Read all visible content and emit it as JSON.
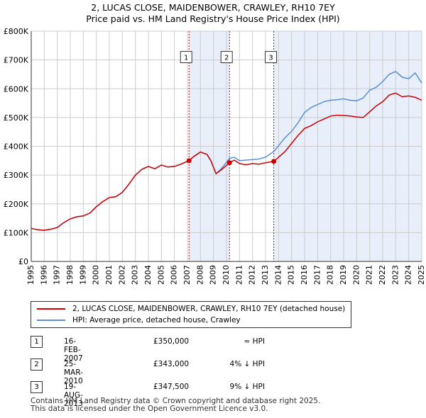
{
  "title_line1": "2, LUCAS CLOSE, MAIDENBOWER, CRAWLEY, RH10 7EY",
  "title_line2": "Price paid vs. HM Land Registry's House Price Index (HPI)",
  "chart_data": {
    "type": "line",
    "title": "2, LUCAS CLOSE, MAIDENBOWER, CRAWLEY, RH10 7EY",
    "subtitle": "Price paid vs. HM Land Registry's House Price Index (HPI)",
    "xlim": [
      1995,
      2025
    ],
    "ylim": [
      0,
      800000
    ],
    "y_ticks": [
      0,
      100000,
      200000,
      300000,
      400000,
      500000,
      600000,
      700000,
      800000
    ],
    "y_tick_labels": [
      "£0",
      "£100K",
      "£200K",
      "£300K",
      "£400K",
      "£500K",
      "£600K",
      "£700K",
      "£800K"
    ],
    "x_ticks": [
      1995,
      1996,
      1997,
      1998,
      1999,
      2000,
      2001,
      2002,
      2003,
      2004,
      2005,
      2006,
      2007,
      2008,
      2009,
      2010,
      2011,
      2012,
      2013,
      2014,
      2015,
      2016,
      2017,
      2018,
      2019,
      2020,
      2021,
      2022,
      2023,
      2024,
      2025
    ],
    "grid": true,
    "legend_position": "bottom",
    "shaded_ranges": [
      [
        2007.12,
        2010.23
      ],
      [
        2013.63,
        2025.0
      ]
    ],
    "series": [
      {
        "name": "2, LUCAS CLOSE, MAIDENBOWER, CRAWLEY, RH10 7EY (detached house)",
        "color": "#cc0000",
        "points": [
          [
            1995.0,
            115000
          ],
          [
            1995.5,
            110000
          ],
          [
            1996.0,
            108000
          ],
          [
            1996.5,
            112000
          ],
          [
            1997.0,
            118000
          ],
          [
            1997.5,
            135000
          ],
          [
            1998.0,
            148000
          ],
          [
            1998.5,
            155000
          ],
          [
            1999.0,
            158000
          ],
          [
            1999.5,
            168000
          ],
          [
            2000.0,
            190000
          ],
          [
            2000.5,
            208000
          ],
          [
            2001.0,
            222000
          ],
          [
            2001.5,
            225000
          ],
          [
            2002.0,
            240000
          ],
          [
            2002.5,
            268000
          ],
          [
            2003.0,
            300000
          ],
          [
            2003.5,
            320000
          ],
          [
            2004.0,
            330000
          ],
          [
            2004.5,
            322000
          ],
          [
            2005.0,
            335000
          ],
          [
            2005.5,
            328000
          ],
          [
            2006.0,
            330000
          ],
          [
            2006.5,
            338000
          ],
          [
            2007.12,
            350000
          ],
          [
            2007.5,
            365000
          ],
          [
            2008.0,
            380000
          ],
          [
            2008.5,
            372000
          ],
          [
            2008.8,
            350000
          ],
          [
            2009.2,
            305000
          ],
          [
            2009.6,
            318000
          ],
          [
            2010.23,
            343000
          ],
          [
            2010.6,
            352000
          ],
          [
            2011.0,
            340000
          ],
          [
            2011.5,
            336000
          ],
          [
            2012.0,
            340000
          ],
          [
            2012.5,
            338000
          ],
          [
            2013.0,
            343000
          ],
          [
            2013.63,
            347500
          ],
          [
            2014.0,
            362000
          ],
          [
            2014.5,
            382000
          ],
          [
            2015.0,
            410000
          ],
          [
            2015.5,
            438000
          ],
          [
            2016.0,
            462000
          ],
          [
            2016.5,
            472000
          ],
          [
            2017.0,
            485000
          ],
          [
            2017.5,
            495000
          ],
          [
            2018.0,
            505000
          ],
          [
            2018.5,
            508000
          ],
          [
            2019.0,
            507000
          ],
          [
            2019.5,
            505000
          ],
          [
            2020.0,
            502000
          ],
          [
            2020.5,
            500000
          ],
          [
            2021.0,
            520000
          ],
          [
            2021.5,
            540000
          ],
          [
            2022.0,
            555000
          ],
          [
            2022.5,
            578000
          ],
          [
            2023.0,
            585000
          ],
          [
            2023.5,
            572000
          ],
          [
            2024.0,
            575000
          ],
          [
            2024.5,
            570000
          ],
          [
            2025.0,
            560000
          ]
        ]
      },
      {
        "name": "HPI: Average price, detached house, Crawley",
        "color": "#5b8fd4",
        "points": [
          [
            1995.0,
            115000
          ],
          [
            1995.5,
            110000
          ],
          [
            1996.0,
            108000
          ],
          [
            1996.5,
            112000
          ],
          [
            1997.0,
            118000
          ],
          [
            1997.5,
            135000
          ],
          [
            1998.0,
            148000
          ],
          [
            1998.5,
            155000
          ],
          [
            1999.0,
            158000
          ],
          [
            1999.5,
            168000
          ],
          [
            2000.0,
            190000
          ],
          [
            2000.5,
            208000
          ],
          [
            2001.0,
            222000
          ],
          [
            2001.5,
            225000
          ],
          [
            2002.0,
            240000
          ],
          [
            2002.5,
            268000
          ],
          [
            2003.0,
            300000
          ],
          [
            2003.5,
            320000
          ],
          [
            2004.0,
            330000
          ],
          [
            2004.5,
            322000
          ],
          [
            2005.0,
            335000
          ],
          [
            2005.5,
            328000
          ],
          [
            2006.0,
            330000
          ],
          [
            2006.5,
            338000
          ],
          [
            2007.12,
            350000
          ],
          [
            2007.5,
            365000
          ],
          [
            2008.0,
            380000
          ],
          [
            2008.5,
            372000
          ],
          [
            2008.8,
            350000
          ],
          [
            2009.2,
            305000
          ],
          [
            2009.6,
            322000
          ],
          [
            2010.23,
            358000
          ],
          [
            2010.6,
            362000
          ],
          [
            2011.0,
            350000
          ],
          [
            2011.5,
            352000
          ],
          [
            2012.0,
            354000
          ],
          [
            2012.5,
            356000
          ],
          [
            2013.0,
            362000
          ],
          [
            2013.63,
            382000
          ],
          [
            2014.0,
            402000
          ],
          [
            2014.5,
            430000
          ],
          [
            2015.0,
            452000
          ],
          [
            2015.5,
            482000
          ],
          [
            2016.0,
            518000
          ],
          [
            2016.5,
            535000
          ],
          [
            2017.0,
            545000
          ],
          [
            2017.5,
            555000
          ],
          [
            2018.0,
            560000
          ],
          [
            2018.5,
            562000
          ],
          [
            2019.0,
            565000
          ],
          [
            2019.5,
            560000
          ],
          [
            2020.0,
            558000
          ],
          [
            2020.5,
            568000
          ],
          [
            2021.0,
            595000
          ],
          [
            2021.5,
            605000
          ],
          [
            2022.0,
            625000
          ],
          [
            2022.5,
            650000
          ],
          [
            2023.0,
            660000
          ],
          [
            2023.5,
            640000
          ],
          [
            2024.0,
            635000
          ],
          [
            2024.5,
            655000
          ],
          [
            2025.0,
            620000
          ]
        ]
      }
    ],
    "sales": [
      {
        "label": "1",
        "x": 2007.12,
        "price": 350000
      },
      {
        "label": "2",
        "x": 2010.23,
        "price": 343000
      },
      {
        "label": "3",
        "x": 2013.63,
        "price": 347500
      }
    ],
    "marker_label_value": 710000
  },
  "legend": {
    "property_label": "2, LUCAS CLOSE, MAIDENBOWER, CRAWLEY, RH10 7EY (detached house)",
    "hpi_label": "HPI: Average price, detached house, Crawley"
  },
  "transactions": [
    {
      "num": "1",
      "date": "16-FEB-2007",
      "price": "£350,000",
      "hpi": "≈ HPI"
    },
    {
      "num": "2",
      "date": "25-MAR-2010",
      "price": "£343,000",
      "hpi": "4% ↓ HPI"
    },
    {
      "num": "3",
      "date": "19-AUG-2013",
      "price": "£347,500",
      "hpi": "9% ↓ HPI"
    }
  ],
  "footer_line1": "Contains HM Land Registry data © Crown copyright and database right 2025.",
  "footer_line2": "This data is licensed under the Open Government Licence v3.0.",
  "colors": {
    "property": "#cc0000",
    "hpi": "#5b8fd4",
    "shade": "#e8eefa",
    "grid": "#cccccc"
  }
}
